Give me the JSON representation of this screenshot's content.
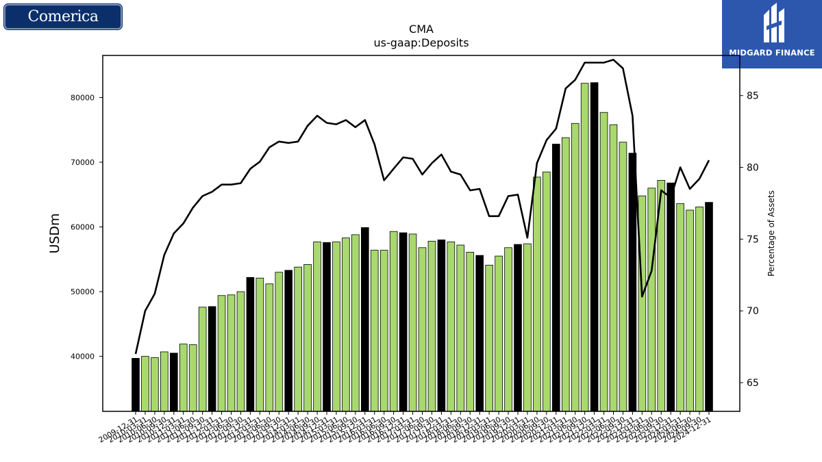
{
  "logos": {
    "left_text": "Comerica",
    "right_text": "MIDGARD FINANCE"
  },
  "chart_data": {
    "type": "bar",
    "title": "CMA",
    "subtitle": "us-gaap:Deposits",
    "ylabel": "USDm",
    "y2label": "Percentage of Assets",
    "ylim": [
      31500,
      86500
    ],
    "y2lim": [
      63,
      87.8
    ],
    "yticks": [
      40000,
      50000,
      60000,
      70000,
      80000
    ],
    "y2ticks": [
      65,
      70,
      75,
      80,
      85
    ],
    "grid": false,
    "colors": {
      "bar_quarter": "#a8d86e",
      "bar_year_end": "#000000",
      "bar_edge": "#000000",
      "line": "#000000"
    },
    "categories": [
      "2009-12-31",
      "2010-03-31",
      "2010-06-30",
      "2010-09-30",
      "2010-12-31",
      "2011-03-31",
      "2011-06-30",
      "2011-09-30",
      "2011-12-31",
      "2012-03-31",
      "2012-06-30",
      "2012-09-30",
      "2012-12-31",
      "2013-03-31",
      "2013-06-30",
      "2013-09-30",
      "2013-12-31",
      "2014-03-31",
      "2014-06-30",
      "2014-09-30",
      "2014-12-31",
      "2015-03-31",
      "2015-06-30",
      "2015-09-30",
      "2015-12-31",
      "2016-03-31",
      "2016-06-30",
      "2016-09-30",
      "2016-12-31",
      "2017-03-31",
      "2017-06-30",
      "2017-09-30",
      "2017-12-31",
      "2018-03-31",
      "2018-06-30",
      "2018-09-30",
      "2018-12-31",
      "2019-03-31",
      "2019-06-30",
      "2019-09-30",
      "2019-12-31",
      "2020-03-31",
      "2020-06-30",
      "2020-09-30",
      "2020-12-31",
      "2021-03-31",
      "2021-06-30",
      "2021-09-30",
      "2021-12-31",
      "2022-03-31",
      "2022-06-30",
      "2022-09-30",
      "2022-12-31",
      "2023-03-31",
      "2023-06-30",
      "2023-09-30",
      "2023-12-31",
      "2024-03-31",
      "2024-06-30",
      "2024-09-30",
      "2024-12-31"
    ],
    "xtick_labels": [
      "2009-12-31",
      "2010-03-31",
      "2010-06-30",
      "2010-09-30",
      "2010-12-31",
      "2011-03-31",
      "2011-06-30",
      "2011-09-30",
      "2011-12-31",
      "2012-03-31",
      "2012-06-30",
      "2012-09-30",
      "2012-12-31",
      "2013-03-31",
      "2013-06-30",
      "2013-09-30",
      "2013-12-31",
      "2014-03-31",
      "2014-06-30",
      "2014-09-30",
      "2014-12-31",
      "2015-03-31",
      "2015-06-30",
      "2015-09-30",
      "2015-12-31",
      "2016-03-31",
      "2016-06-30",
      "2016-09-30",
      "2016-12-31",
      "2017-03-31",
      "2017-06-30",
      "2017-09-30",
      "2017-12-31",
      "2018-03-31",
      "2018-06-30",
      "2018-09-30",
      "2018-12-31",
      "2019-03-31",
      "2019-06-30",
      "2019-09-30",
      "2019-12-31",
      "2020-03-31",
      "2020-06-30",
      "2020-09-30",
      "2020-12-31",
      "2021-03-31",
      "2021-06-30",
      "2021-09-30",
      "2021-12-31",
      "2022-03-31",
      "2022-06-30",
      "2022-09-30",
      "2022-12-31",
      "2023-03-31",
      "2023-06-30",
      "2023-09-30",
      "2023-12-31",
      "2024-03-31",
      "2024-06-30",
      "2024-09-30",
      "2024-12-31"
    ],
    "series": [
      {
        "kind": "bar",
        "axis": "left",
        "values": [
          39700,
          40000,
          39800,
          40700,
          40500,
          41900,
          41800,
          47600,
          47700,
          49400,
          49500,
          50000,
          52200,
          52100,
          51200,
          53000,
          53300,
          53800,
          54200,
          57700,
          57600,
          57700,
          58300,
          58800,
          59900,
          56400,
          56400,
          59300,
          59100,
          58900,
          56800,
          57800,
          58000,
          57700,
          57200,
          56100,
          55600,
          54100,
          55500,
          56800,
          57300,
          57400,
          67700,
          68500,
          72800,
          73800,
          76000,
          82200,
          82300,
          77700,
          75800,
          73100,
          71400,
          64800,
          66000,
          67200,
          66800,
          63600,
          62600,
          63100,
          63800
        ],
        "year_end_flags": [
          1,
          0,
          0,
          0,
          1,
          0,
          0,
          0,
          1,
          0,
          0,
          0,
          1,
          0,
          0,
          0,
          1,
          0,
          0,
          0,
          1,
          0,
          0,
          0,
          1,
          0,
          0,
          0,
          1,
          0,
          0,
          0,
          1,
          0,
          0,
          0,
          1,
          0,
          0,
          0,
          1,
          0,
          0,
          0,
          1,
          0,
          0,
          0,
          1,
          0,
          0,
          0,
          1,
          0,
          0,
          0,
          1,
          0,
          0,
          0,
          1
        ]
      },
      {
        "kind": "line",
        "axis": "right",
        "values": [
          67.0,
          70.0,
          71.2,
          73.9,
          75.4,
          76.1,
          77.2,
          78.0,
          78.3,
          78.8,
          78.8,
          78.9,
          79.9,
          80.4,
          81.4,
          81.8,
          81.7,
          81.8,
          82.9,
          83.6,
          83.1,
          83.0,
          83.3,
          82.8,
          83.3,
          81.6,
          79.1,
          79.9,
          80.7,
          80.6,
          79.5,
          80.3,
          80.9,
          79.7,
          79.5,
          78.4,
          78.5,
          76.6,
          76.6,
          78.0,
          78.1,
          75.1,
          80.3,
          81.9,
          82.7,
          85.5,
          86.1,
          87.3,
          87.3,
          87.3,
          87.5,
          86.9,
          83.6,
          71.0,
          72.8,
          78.4,
          77.9,
          80.0,
          78.5,
          79.2,
          80.5
        ]
      }
    ]
  }
}
